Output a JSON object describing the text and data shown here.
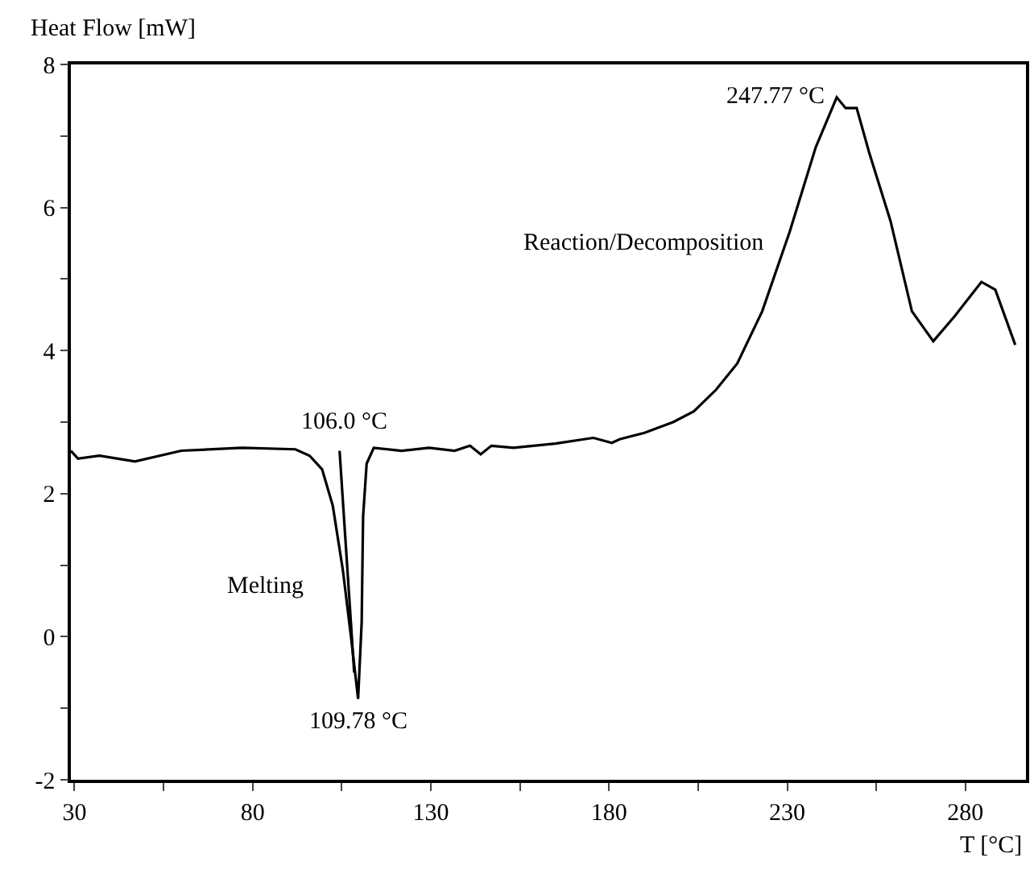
{
  "chart_data": {
    "type": "line",
    "xlabel": "T [°C]",
    "ylabel": "Heat Flow [mW]",
    "xlim": [
      29,
      297
    ],
    "ylim": [
      -2,
      8
    ],
    "xticks": [
      30,
      {
        "value": 55,
        "label": null
      },
      80,
      {
        "value": 105,
        "label": null
      },
      130,
      {
        "value": 155,
        "label": null
      },
      180,
      {
        "value": 205,
        "label": null
      },
      230,
      {
        "value": 255,
        "label": null
      },
      280
    ],
    "yticks": [
      -2,
      {
        "value": -1,
        "label": null
      },
      0,
      {
        "value": 1,
        "label": null
      },
      2,
      {
        "value": 3,
        "label": null
      },
      4,
      {
        "value": 5,
        "label": null
      },
      6,
      {
        "value": 7,
        "label": null
      },
      8
    ],
    "marker": "none",
    "line_style": "solid",
    "series": [
      {
        "color": "#000000",
        "x": [
          29,
          31,
          37,
          47,
          60,
          77,
          92,
          96,
          99.5,
          102.5,
          105.3,
          107.6,
          109.6,
          110.6,
          111,
          112,
          114,
          121.8,
          129.5,
          136.7,
          141,
          144,
          147,
          153.2,
          165,
          175.6,
          180.8,
          183,
          190,
          198,
          203.8,
          210,
          216,
          223,
          230.7,
          238,
          243.9,
          246.4,
          249.5,
          253,
          259,
          265,
          271,
          277,
          284.5,
          288.4,
          294
        ],
        "values": [
          2.6,
          2.49,
          2.53,
          2.45,
          2.6,
          2.64,
          2.62,
          2.53,
          2.34,
          1.83,
          0.94,
          0.0,
          -0.87,
          0.2,
          1.68,
          2.42,
          2.64,
          2.6,
          2.64,
          2.6,
          2.67,
          2.55,
          2.67,
          2.64,
          2.7,
          2.78,
          2.71,
          2.76,
          2.85,
          3.0,
          3.15,
          3.45,
          3.82,
          4.55,
          5.66,
          6.84,
          7.54,
          7.39,
          7.39,
          6.77,
          5.81,
          4.55,
          4.13,
          4.48,
          4.96,
          4.85,
          4.08
        ]
      },
      {
        "color": "#000000",
        "x": [
          104.4,
          108.5
        ],
        "values": [
          2.6,
          -0.5
        ]
      }
    ],
    "annotations": [
      {
        "text": "106.0 °C",
        "x": 106,
        "y": 2.64
      },
      {
        "text": "109.78 °C",
        "x": 109.6,
        "y": -0.87
      },
      {
        "text": "247.77 °C",
        "x": 243.9,
        "y": 7.54
      },
      "Reaction/Decomposition",
      "Melting"
    ]
  }
}
